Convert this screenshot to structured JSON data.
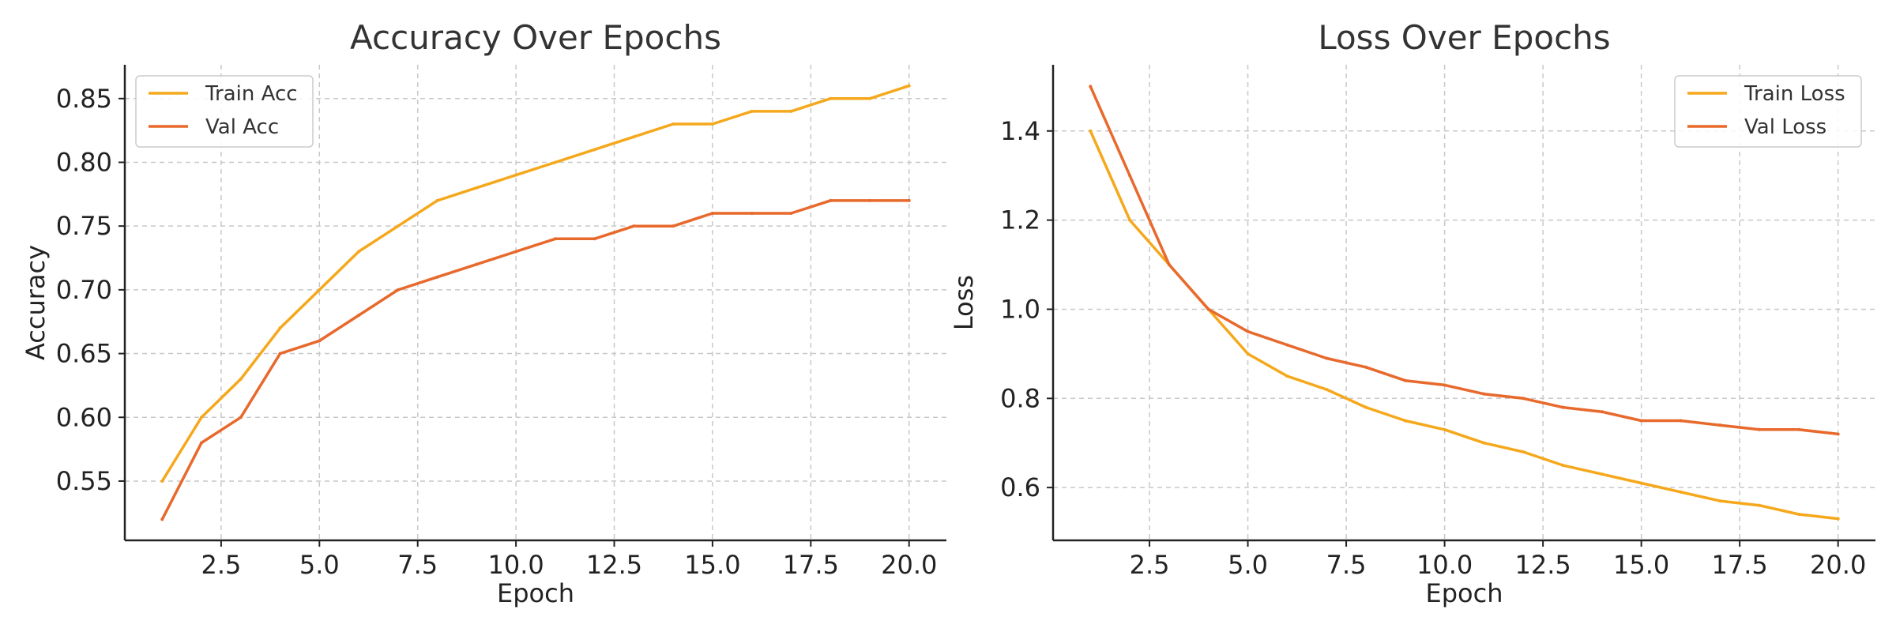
{
  "chart_data": [
    {
      "type": "line",
      "title": "Accuracy Over Epochs",
      "xlabel": "Epoch",
      "ylabel": "Accuracy",
      "xlim": [
        0.05,
        20.95
      ],
      "ylim": [
        0.5035,
        0.8765
      ],
      "xticks": [
        2.5,
        5.0,
        7.5,
        10.0,
        12.5,
        15.0,
        17.5,
        20.0
      ],
      "xtick_labels": [
        "2.5",
        "5.0",
        "7.5",
        "10.0",
        "12.5",
        "15.0",
        "17.5",
        "20.0"
      ],
      "yticks": [
        0.55,
        0.6,
        0.65,
        0.7,
        0.75,
        0.8,
        0.85
      ],
      "ytick_labels": [
        "0.55",
        "0.60",
        "0.65",
        "0.70",
        "0.75",
        "0.80",
        "0.85"
      ],
      "grid": true,
      "legend_position": "top-left",
      "x": [
        1,
        2,
        3,
        4,
        5,
        6,
        7,
        8,
        9,
        10,
        11,
        12,
        13,
        14,
        15,
        16,
        17,
        18,
        19,
        20
      ],
      "series": [
        {
          "name": "Train Acc",
          "color": "#f5a81c",
          "values": [
            0.55,
            0.6,
            0.63,
            0.67,
            0.7,
            0.73,
            0.75,
            0.77,
            0.78,
            0.79,
            0.8,
            0.81,
            0.82,
            0.83,
            0.83,
            0.84,
            0.84,
            0.85,
            0.85,
            0.86
          ]
        },
        {
          "name": "Val Acc",
          "color": "#e8692c",
          "values": [
            0.52,
            0.58,
            0.6,
            0.65,
            0.66,
            0.68,
            0.7,
            0.71,
            0.72,
            0.73,
            0.74,
            0.74,
            0.75,
            0.75,
            0.76,
            0.76,
            0.76,
            0.77,
            0.77,
            0.77
          ]
        }
      ]
    },
    {
      "type": "line",
      "title": "Loss Over Epochs",
      "xlabel": "Epoch",
      "ylabel": "Loss",
      "xlim": [
        0.05,
        20.95
      ],
      "ylim": [
        0.4815,
        1.5485
      ],
      "xticks": [
        2.5,
        5.0,
        7.5,
        10.0,
        12.5,
        15.0,
        17.5,
        20.0
      ],
      "xtick_labels": [
        "2.5",
        "5.0",
        "7.5",
        "10.0",
        "12.5",
        "15.0",
        "17.5",
        "20.0"
      ],
      "yticks": [
        0.6,
        0.8,
        1.0,
        1.2,
        1.4
      ],
      "ytick_labels": [
        "0.6",
        "0.8",
        "1.0",
        "1.2",
        "1.4"
      ],
      "grid": true,
      "legend_position": "top-right",
      "x": [
        1,
        2,
        3,
        4,
        5,
        6,
        7,
        8,
        9,
        10,
        11,
        12,
        13,
        14,
        15,
        16,
        17,
        18,
        19,
        20
      ],
      "series": [
        {
          "name": "Train Loss",
          "color": "#f5a81c",
          "values": [
            1.4,
            1.2,
            1.1,
            1.0,
            0.9,
            0.85,
            0.82,
            0.78,
            0.75,
            0.73,
            0.7,
            0.68,
            0.65,
            0.63,
            0.61,
            0.59,
            0.57,
            0.56,
            0.54,
            0.53
          ]
        },
        {
          "name": "Val Loss",
          "color": "#e8692c",
          "values": [
            1.5,
            1.3,
            1.1,
            1.0,
            0.95,
            0.92,
            0.89,
            0.87,
            0.84,
            0.83,
            0.81,
            0.8,
            0.78,
            0.77,
            0.75,
            0.75,
            0.74,
            0.73,
            0.73,
            0.72
          ]
        }
      ]
    }
  ]
}
